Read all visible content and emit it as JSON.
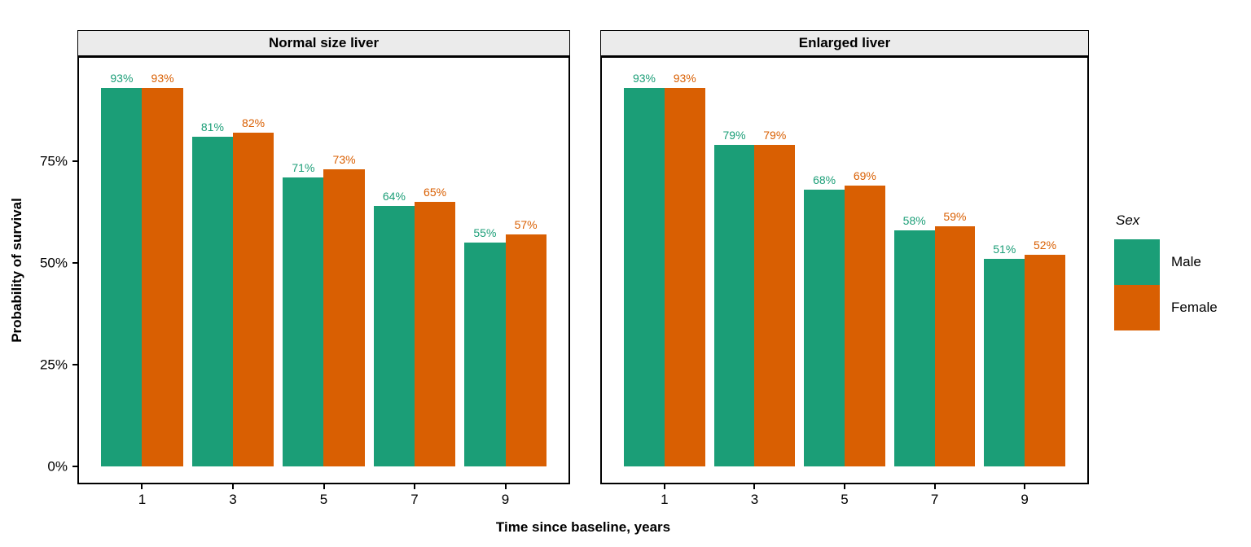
{
  "chart_data": {
    "type": "bar",
    "title": "",
    "xlabel": "Time since baseline, years",
    "ylabel": "Probability of survival",
    "legend_title": "Sex",
    "legend_position": "right",
    "grid": false,
    "categories": [
      1,
      3,
      5,
      7,
      9
    ],
    "x_tick_labels": [
      "1",
      "3",
      "5",
      "7",
      "9"
    ],
    "y_tick_values": [
      0,
      25,
      50,
      75
    ],
    "y_tick_labels": [
      "0%",
      "25%",
      "50%",
      "75%"
    ],
    "xlim": [
      -0.39,
      10.39
    ],
    "ylim_pct": [
      -4,
      100.4
    ],
    "bar_width_x_units": 0.9,
    "value_label_suffix": "%",
    "colors": {
      "male": "#1B9E77",
      "female": "#D95F02"
    },
    "facets": [
      {
        "title": "Normal size liver",
        "series": [
          {
            "name": "Male",
            "color": "#1B9E77",
            "values": [
              93,
              81,
              71,
              64,
              55
            ]
          },
          {
            "name": "Female",
            "color": "#D95F02",
            "values": [
              93,
              82,
              73,
              65,
              57
            ]
          }
        ]
      },
      {
        "title": "Enlarged liver",
        "series": [
          {
            "name": "Male",
            "color": "#1B9E77",
            "values": [
              93,
              79,
              68,
              58,
              51
            ]
          },
          {
            "name": "Female",
            "color": "#D95F02",
            "values": [
              93,
              79,
              69,
              59,
              52
            ]
          }
        ]
      }
    ]
  }
}
